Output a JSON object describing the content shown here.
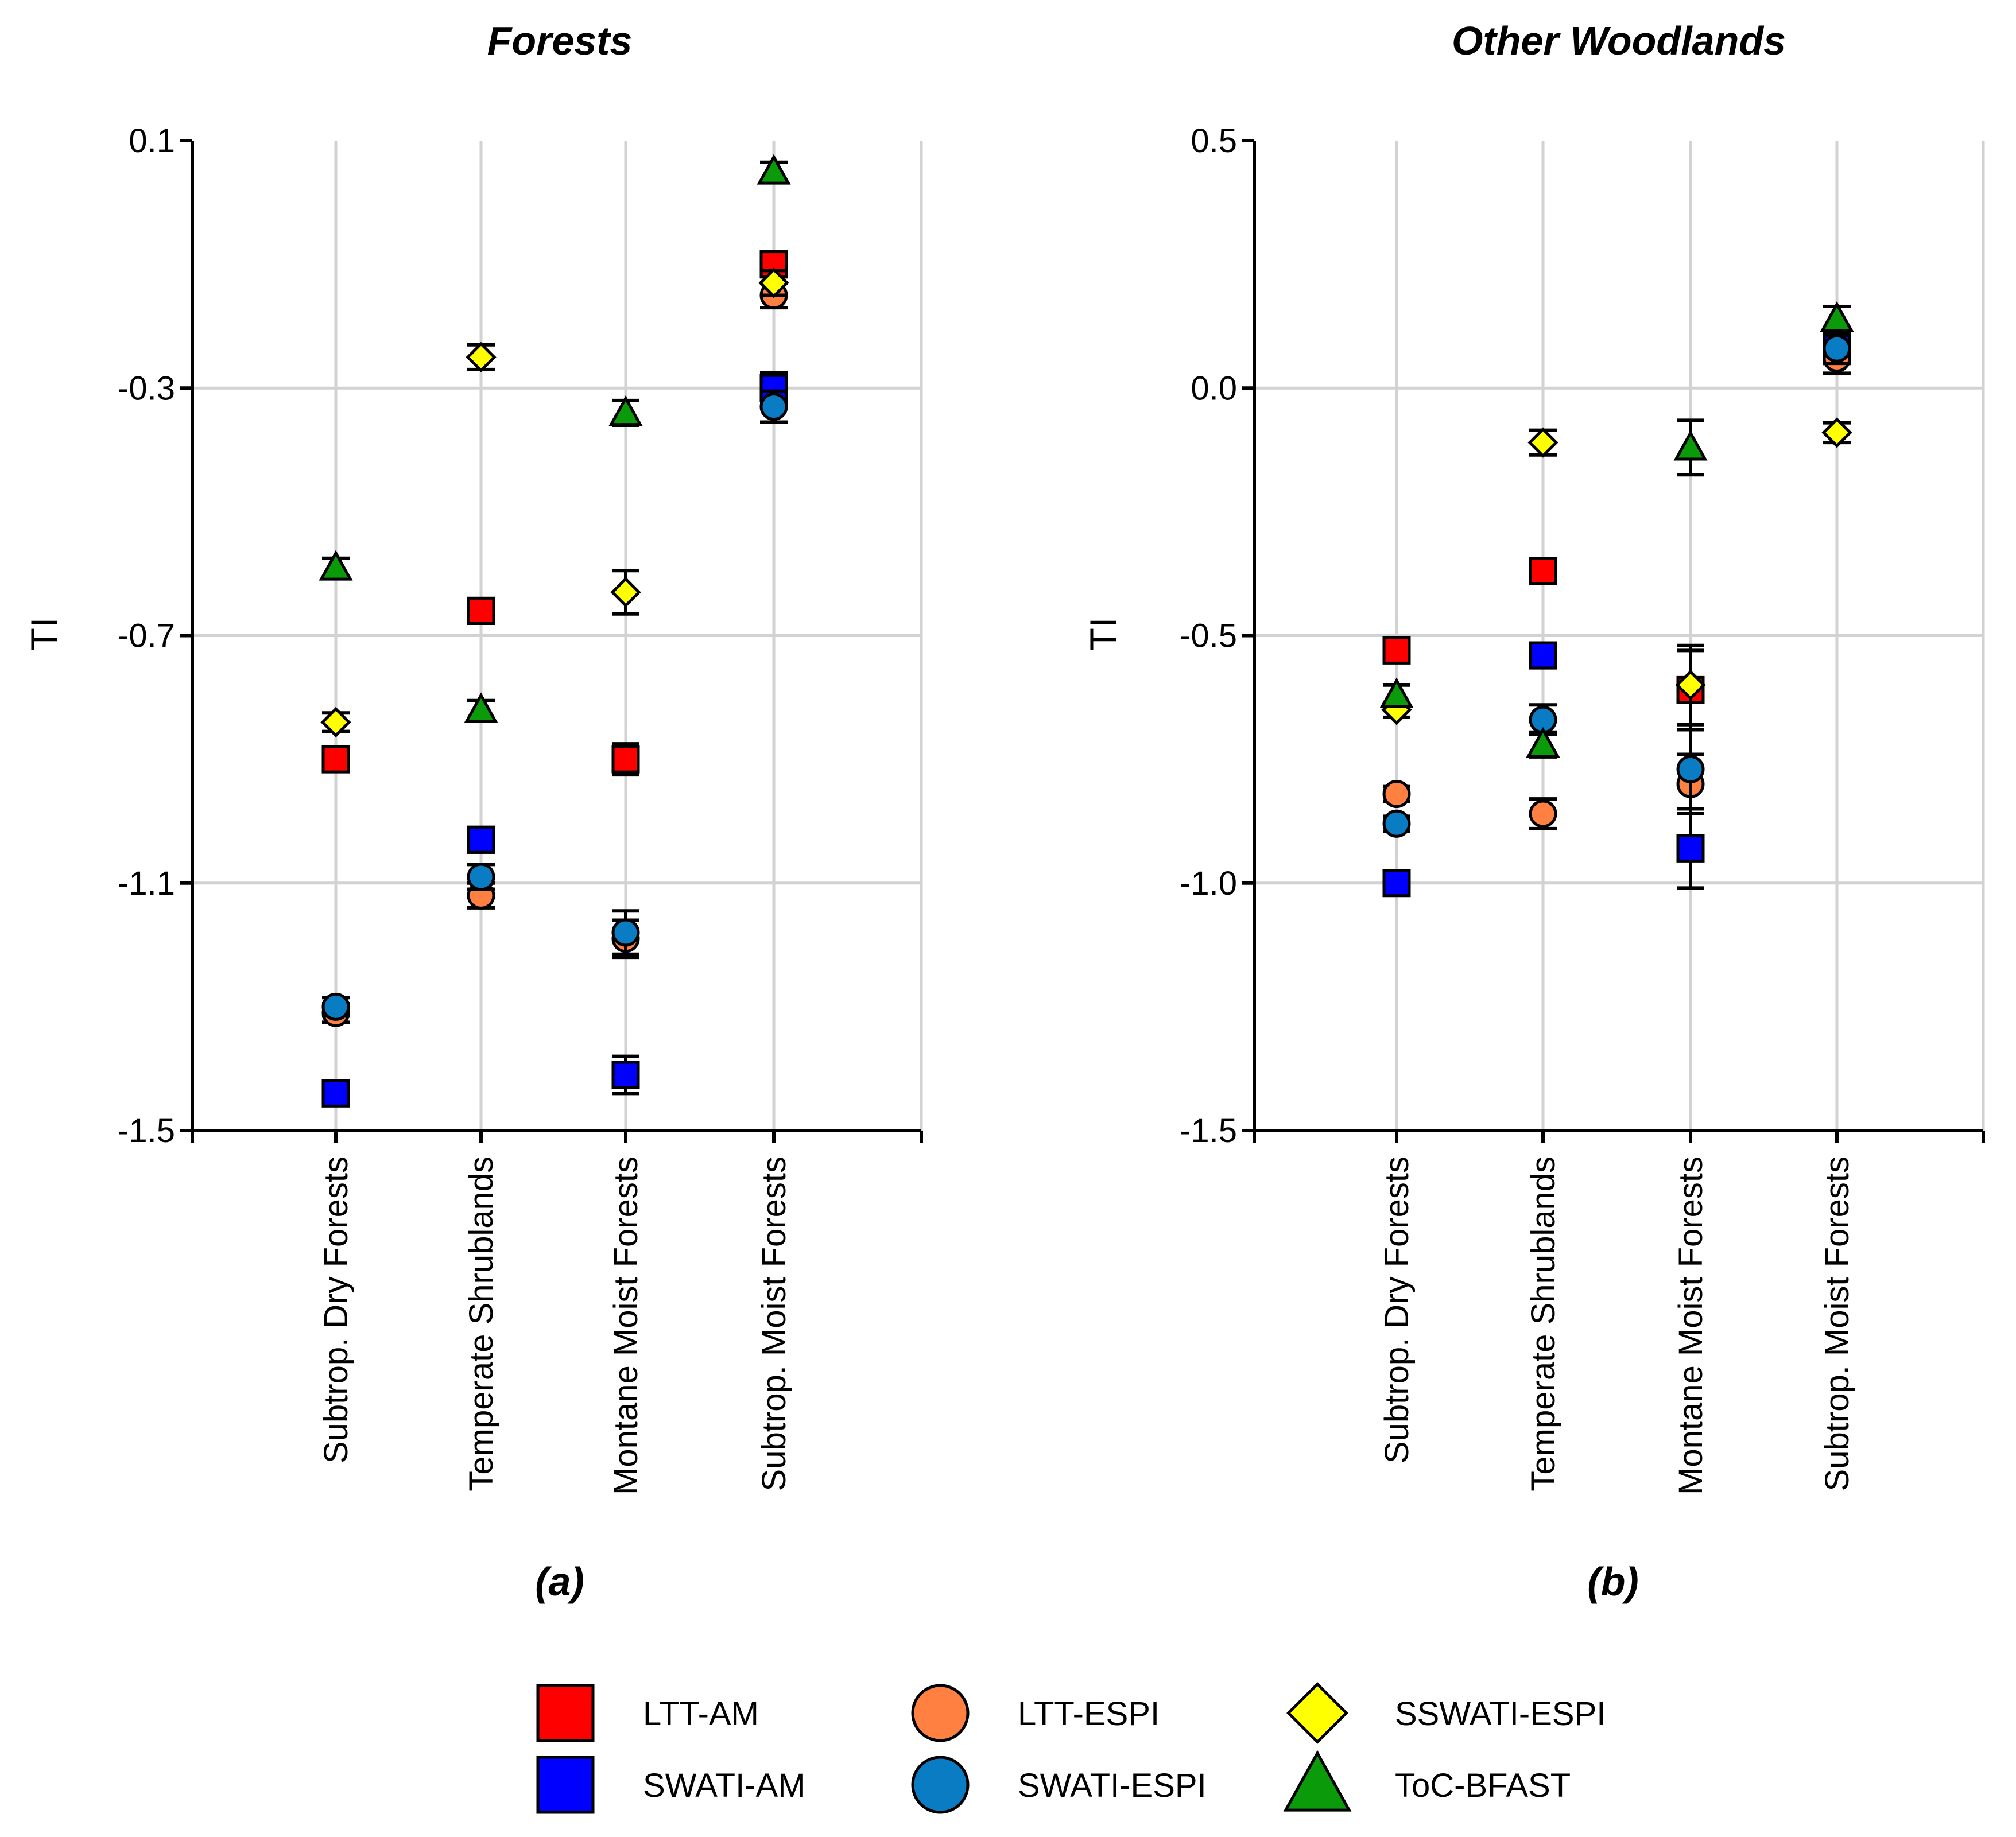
{
  "series_styles": [
    {
      "name": "LTT-AM",
      "shape": "square",
      "color": "#ff0000"
    },
    {
      "name": "SWATI-AM",
      "shape": "square",
      "color": "#0000ff"
    },
    {
      "name": "LTT-ESPI",
      "shape": "circle",
      "color": "#ff8040"
    },
    {
      "name": "SWATI-ESPI",
      "shape": "circle",
      "color": "#0a7cc4"
    },
    {
      "name": "SSWATI-ESPI",
      "shape": "diamond",
      "color": "#ffff00"
    },
    {
      "name": "ToC-BFAST",
      "shape": "triangle",
      "color": "#0a9a0a"
    }
  ],
  "legend": {
    "items": [
      "LTT-AM",
      "SWATI-AM",
      "LTT-ESPI",
      "SWATI-ESPI",
      "SSWATI-ESPI",
      "ToC-BFAST"
    ]
  },
  "chart_data": [
    {
      "type": "scatter",
      "title": "Forests",
      "panel_label": "(a)",
      "ylabel": "TI",
      "xlabel": "",
      "categories": [
        "Subtrop. Dry Forests",
        "Temperate Shrublands",
        "Montane Moist Forests",
        "Subtrop. Moist Forests"
      ],
      "ylim": [
        -1.5,
        0.1
      ],
      "yticks": [
        0.1,
        -0.3,
        -0.7,
        -1.1,
        -1.5
      ],
      "ytick_labels": [
        "0.1",
        "-0.3",
        "-0.7",
        "-1.1",
        "-1.5"
      ],
      "grid": true,
      "series": [
        {
          "name": "LTT-AM",
          "values": [
            -0.9,
            -0.66,
            -0.9,
            -0.1
          ],
          "errors": [
            0.015,
            0.02,
            0.025,
            0.02
          ]
        },
        {
          "name": "SWATI-AM",
          "values": [
            -1.44,
            -1.03,
            -1.41,
            -0.3
          ],
          "errors": [
            0.015,
            0.02,
            0.03,
            0.025
          ]
        },
        {
          "name": "LTT-ESPI",
          "values": [
            -1.31,
            -1.12,
            -1.19,
            -0.15
          ],
          "errors": [
            0.015,
            0.02,
            0.03,
            0.02
          ]
        },
        {
          "name": "SWATI-ESPI",
          "values": [
            -1.3,
            -1.09,
            -1.18,
            -0.33
          ],
          "errors": [
            0.015,
            0.02,
            0.035,
            0.025
          ]
        },
        {
          "name": "SSWATI-ESPI",
          "values": [
            -0.84,
            -0.25,
            -0.63,
            -0.13
          ],
          "errors": [
            0.015,
            0.02,
            0.035,
            0.02
          ]
        },
        {
          "name": "ToC-BFAST",
          "values": [
            -0.59,
            -0.82,
            -0.34,
            0.05
          ],
          "errors": [
            0.015,
            0.015,
            0.02,
            0.015
          ]
        }
      ]
    },
    {
      "type": "scatter",
      "title": "Other Woodlands",
      "panel_label": "(b)",
      "ylabel": "TI",
      "xlabel": "",
      "categories": [
        "Subtrop. Dry Forests",
        "Temperate Shrublands",
        "Montane Moist Forests",
        "Subtrop. Moist Forests"
      ],
      "ylim": [
        -1.5,
        0.5
      ],
      "yticks": [
        0.5,
        0.0,
        -0.5,
        -1.0,
        -1.5
      ],
      "ytick_labels": [
        "0.5",
        "0.0",
        "-0.5",
        "-1.0",
        "-1.5"
      ],
      "grid": true,
      "series": [
        {
          "name": "LTT-AM",
          "values": [
            -0.53,
            -0.37,
            -0.61,
            0.08
          ],
          "errors": [
            0.015,
            0.02,
            0.08,
            0.03
          ]
        },
        {
          "name": "SWATI-AM",
          "values": [
            -1.0,
            -0.54,
            -0.93,
            0.08
          ],
          "errors": [
            0.015,
            0.025,
            0.08,
            0.03
          ]
        },
        {
          "name": "LTT-ESPI",
          "values": [
            -0.82,
            -0.86,
            -0.8,
            0.06
          ],
          "errors": [
            0.015,
            0.03,
            0.06,
            0.03
          ]
        },
        {
          "name": "SWATI-ESPI",
          "values": [
            -0.88,
            -0.67,
            -0.77,
            0.08
          ],
          "errors": [
            0.015,
            0.03,
            0.08,
            0.03
          ]
        },
        {
          "name": "SSWATI-ESPI",
          "values": [
            -0.65,
            -0.11,
            -0.6,
            -0.09
          ],
          "errors": [
            0.015,
            0.025,
            0.08,
            0.02
          ]
        },
        {
          "name": "ToC-BFAST",
          "values": [
            -0.62,
            -0.72,
            -0.12,
            0.14
          ],
          "errors": [
            0.02,
            0.025,
            0.055,
            0.025
          ]
        }
      ]
    }
  ]
}
